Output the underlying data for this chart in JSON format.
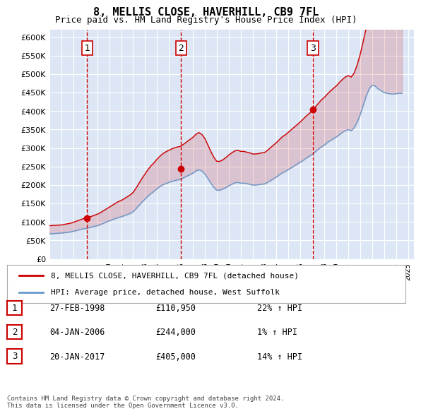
{
  "title": "8, MELLIS CLOSE, HAVERHILL, CB9 7FL",
  "subtitle": "Price paid vs. HM Land Registry's House Price Index (HPI)",
  "ylabel_ticks": [
    "£0",
    "£50K",
    "£100K",
    "£150K",
    "£200K",
    "£250K",
    "£300K",
    "£350K",
    "£400K",
    "£450K",
    "£500K",
    "£550K",
    "£600K"
  ],
  "ytick_values": [
    0,
    50000,
    100000,
    150000,
    200000,
    250000,
    300000,
    350000,
    400000,
    450000,
    500000,
    550000,
    600000
  ],
  "ylim": [
    0,
    620000
  ],
  "xlim_start": 1995.0,
  "xlim_end": 2025.5,
  "xtick_years": [
    1995,
    1996,
    1997,
    1998,
    1999,
    2000,
    2001,
    2002,
    2003,
    2004,
    2005,
    2006,
    2007,
    2008,
    2009,
    2010,
    2011,
    2012,
    2013,
    2014,
    2015,
    2016,
    2017,
    2018,
    2019,
    2020,
    2021,
    2022,
    2023,
    2024,
    2025
  ],
  "background_color": "#dce6f5",
  "plot_bg_color": "#dce6f5",
  "grid_color": "#ffffff",
  "line1_color": "#cc0000",
  "line2_color": "#6699cc",
  "sale_marker_color": "#cc0000",
  "vline_color": "#cc0000",
  "vline_style": "--",
  "legend1_label": "8, MELLIS CLOSE, HAVERHILL, CB9 7FL (detached house)",
  "legend2_label": "HPI: Average price, detached house, West Suffolk",
  "transactions": [
    {
      "id": 1,
      "date": "27-FEB-1998",
      "year": 1998.15,
      "price": 110950,
      "pct": "22%",
      "dir": "↑"
    },
    {
      "id": 2,
      "date": "04-JAN-2006",
      "year": 2006.02,
      "price": 244000,
      "pct": "1%",
      "dir": "↑"
    },
    {
      "id": 3,
      "date": "20-JAN-2017",
      "year": 2017.05,
      "price": 405000,
      "pct": "14%",
      "dir": "↑"
    }
  ],
  "footer": "Contains HM Land Registry data © Crown copyright and database right 2024.\nThis data is licensed under the Open Government Licence v3.0.",
  "hpi_data": {
    "years": [
      1995.0,
      1995.25,
      1995.5,
      1995.75,
      1996.0,
      1996.25,
      1996.5,
      1996.75,
      1997.0,
      1997.25,
      1997.5,
      1997.75,
      1998.0,
      1998.25,
      1998.5,
      1998.75,
      1999.0,
      1999.25,
      1999.5,
      1999.75,
      2000.0,
      2000.25,
      2000.5,
      2000.75,
      2001.0,
      2001.25,
      2001.5,
      2001.75,
      2002.0,
      2002.25,
      2002.5,
      2002.75,
      2003.0,
      2003.25,
      2003.5,
      2003.75,
      2004.0,
      2004.25,
      2004.5,
      2004.75,
      2005.0,
      2005.25,
      2005.5,
      2005.75,
      2006.0,
      2006.25,
      2006.5,
      2006.75,
      2007.0,
      2007.25,
      2007.5,
      2007.75,
      2008.0,
      2008.25,
      2008.5,
      2008.75,
      2009.0,
      2009.25,
      2009.5,
      2009.75,
      2010.0,
      2010.25,
      2010.5,
      2010.75,
      2011.0,
      2011.25,
      2011.5,
      2011.75,
      2012.0,
      2012.25,
      2012.5,
      2012.75,
      2013.0,
      2013.25,
      2013.5,
      2013.75,
      2014.0,
      2014.25,
      2014.5,
      2014.75,
      2015.0,
      2015.25,
      2015.5,
      2015.75,
      2016.0,
      2016.25,
      2016.5,
      2016.75,
      2017.0,
      2017.25,
      2017.5,
      2017.75,
      2018.0,
      2018.25,
      2018.5,
      2018.75,
      2019.0,
      2019.25,
      2019.5,
      2019.75,
      2020.0,
      2020.25,
      2020.5,
      2020.75,
      2021.0,
      2021.25,
      2021.5,
      2021.75,
      2022.0,
      2022.25,
      2022.5,
      2022.75,
      2023.0,
      2023.25,
      2023.5,
      2023.75,
      2024.0,
      2024.25,
      2024.5
    ],
    "hpi_values": [
      68000,
      68500,
      69000,
      69500,
      70000,
      71000,
      72000,
      73000,
      75000,
      77000,
      79000,
      81000,
      82000,
      84000,
      86000,
      88000,
      90000,
      93000,
      96000,
      100000,
      103000,
      106000,
      109000,
      112000,
      114000,
      117000,
      120000,
      123000,
      128000,
      136000,
      145000,
      154000,
      162000,
      170000,
      177000,
      183000,
      190000,
      196000,
      201000,
      204000,
      207000,
      210000,
      212000,
      214000,
      216000,
      220000,
      224000,
      228000,
      232000,
      238000,
      241000,
      238000,
      230000,
      218000,
      205000,
      194000,
      186000,
      186000,
      189000,
      193000,
      198000,
      202000,
      206000,
      207000,
      205000,
      205000,
      204000,
      202000,
      200000,
      200000,
      201000,
      202000,
      203000,
      207000,
      212000,
      217000,
      222000,
      228000,
      233000,
      237000,
      242000,
      247000,
      252000,
      257000,
      262000,
      267000,
      273000,
      278000,
      283000,
      290000,
      297000,
      303000,
      308000,
      315000,
      320000,
      325000,
      330000,
      336000,
      342000,
      347000,
      350000,
      347000,
      355000,
      370000,
      390000,
      415000,
      440000,
      460000,
      470000,
      468000,
      460000,
      455000,
      450000,
      448000,
      447000,
      446000,
      447000,
      448000,
      448000
    ],
    "price_data_years": [
      1995.0,
      1995.25,
      1995.5,
      1995.75,
      1996.0,
      1996.25,
      1996.5,
      1996.75,
      1997.0,
      1997.25,
      1997.5,
      1997.75,
      1998.0,
      1998.25,
      1998.5,
      1998.75,
      1999.0,
      1999.25,
      1999.5,
      1999.75,
      2000.0,
      2000.25,
      2000.5,
      2000.75,
      2001.0,
      2001.25,
      2001.5,
      2001.75,
      2002.0,
      2002.25,
      2002.5,
      2002.75,
      2003.0,
      2003.25,
      2003.5,
      2003.75,
      2004.0,
      2004.25,
      2004.5,
      2004.75,
      2005.0,
      2005.25,
      2005.5,
      2005.75,
      2006.0,
      2006.25,
      2006.5,
      2006.75,
      2007.0,
      2007.25,
      2007.5,
      2007.75,
      2008.0,
      2008.25,
      2008.5,
      2008.75,
      2009.0,
      2009.25,
      2009.5,
      2009.75,
      2010.0,
      2010.25,
      2010.5,
      2010.75,
      2011.0,
      2011.25,
      2011.5,
      2011.75,
      2012.0,
      2012.25,
      2012.5,
      2012.75,
      2013.0,
      2013.25,
      2013.5,
      2013.75,
      2014.0,
      2014.25,
      2014.5,
      2014.75,
      2015.0,
      2015.25,
      2015.5,
      2015.75,
      2016.0,
      2016.25,
      2016.5,
      2016.75,
      2017.0,
      2017.25,
      2017.5,
      2017.75,
      2018.0,
      2018.25,
      2018.5,
      2018.75,
      2019.0,
      2019.25,
      2019.5,
      2019.75,
      2020.0,
      2020.25,
      2020.5,
      2020.75,
      2021.0,
      2021.25,
      2021.5,
      2021.75,
      2022.0,
      2022.25,
      2022.5,
      2022.75,
      2023.0,
      2023.25,
      2023.5,
      2023.75,
      2024.0,
      2024.25,
      2024.5
    ],
    "price_indexed": [
      90000,
      90500,
      91000,
      91500,
      92000,
      93500,
      95000,
      96500,
      99000,
      102000,
      105000,
      108000,
      110950,
      113000,
      115000,
      118000,
      121000,
      125000,
      130000,
      135000,
      140000,
      145000,
      150000,
      155000,
      158000,
      163000,
      168000,
      173000,
      180000,
      192000,
      205000,
      218000,
      230000,
      242000,
      252000,
      260000,
      270000,
      278000,
      285000,
      290000,
      294000,
      298000,
      301000,
      303000,
      305000,
      311000,
      317000,
      323000,
      329000,
      337000,
      342000,
      337000,
      326000,
      309000,
      291000,
      275000,
      264000,
      264000,
      268000,
      274000,
      281000,
      287000,
      292000,
      294000,
      291000,
      291000,
      289000,
      287000,
      284000,
      284000,
      285000,
      287000,
      288000,
      294000,
      301000,
      308000,
      315000,
      323000,
      331000,
      336000,
      343000,
      350000,
      357000,
      364000,
      371000,
      379000,
      387000,
      394000,
      401000,
      411000,
      421000,
      430000,
      437000,
      446000,
      454000,
      461000,
      468000,
      477000,
      485000,
      492000,
      496000,
      492000,
      503000,
      525000,
      553000,
      588000,
      624000,
      652000,
      667000,
      664000,
      653000,
      645000,
      638000,
      635000,
      634000,
      633000,
      634000,
      635000,
      635000
    ]
  }
}
